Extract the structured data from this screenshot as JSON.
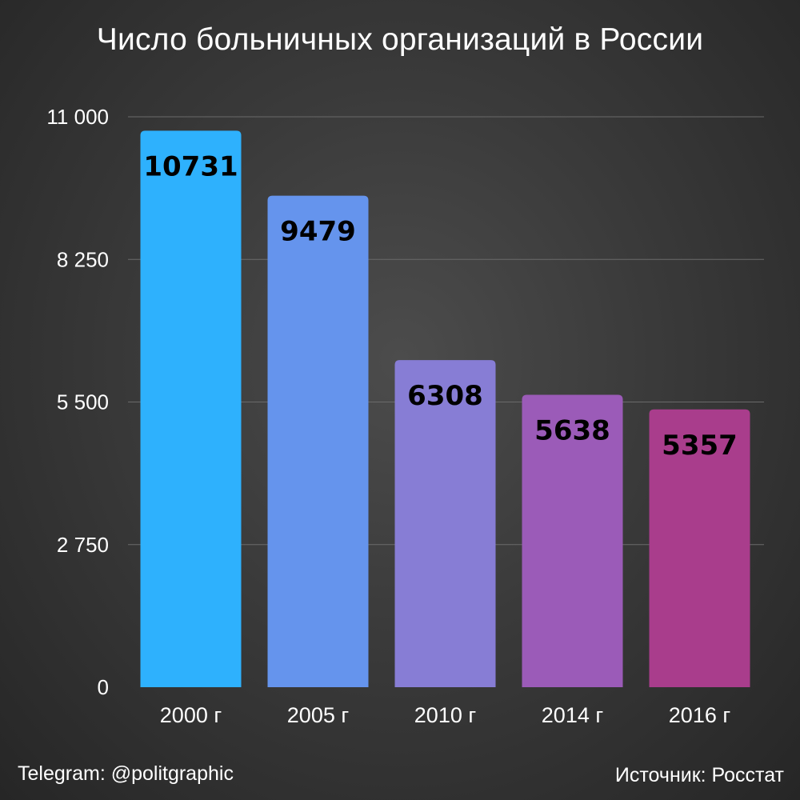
{
  "title": "Число больничных организаций в России",
  "footer": {
    "telegram": "Telegram: @politgraphic",
    "source": "Источник: Росстат"
  },
  "colors": {
    "gridline": "#6a6a6a",
    "bar_label": "#000000",
    "text": "#ffffff"
  },
  "chart_data": {
    "type": "bar",
    "title": "Число больничных организаций в России",
    "categories": [
      "2000 г",
      "2005 г",
      "2010 г",
      "2014 г",
      "2016 г"
    ],
    "values": [
      10731,
      9479,
      6308,
      5638,
      5357
    ],
    "data_labels": [
      "10731",
      "9479",
      "6308",
      "5638",
      "5357"
    ],
    "bar_colors": [
      "#2eb1fd",
      "#6594ed",
      "#877dd5",
      "#9b5bb8",
      "#a93d8c"
    ],
    "ylim": [
      0,
      11000
    ],
    "yticks": [
      0,
      2750,
      5500,
      8250,
      11000
    ],
    "ytick_labels": [
      "0",
      "2 750",
      "5 500",
      "8 250",
      "11 000"
    ],
    "xlabel": "",
    "ylabel": "",
    "grid": true,
    "legend": "none"
  }
}
